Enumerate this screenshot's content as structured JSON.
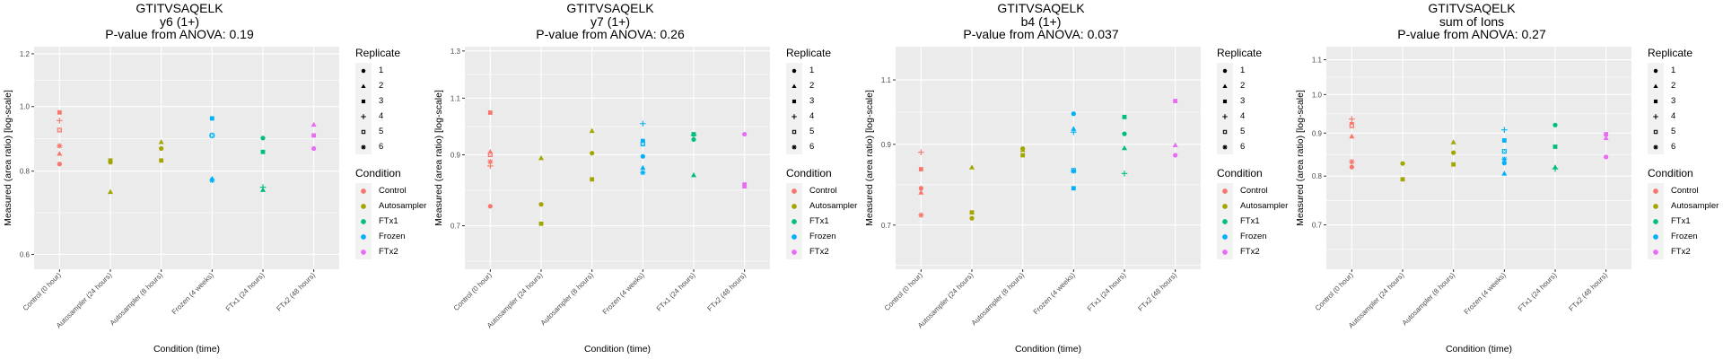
{
  "conditions": [
    "Control (0 hour)",
    "Autosampler (24 hours)",
    "Autosampler (8 hours)",
    "Frozen (4 weeks)",
    "FTx1 (24 hours)",
    "FTx2 (48 hours)"
  ],
  "condition_groups": [
    "Control",
    "Autosampler",
    "Autosampler",
    "Frozen",
    "FTx1",
    "FTx2"
  ],
  "legend": {
    "replicate_title": "Replicate",
    "replicates": [
      {
        "label": "1",
        "shape": "circle"
      },
      {
        "label": "2",
        "shape": "triangle"
      },
      {
        "label": "3",
        "shape": "square"
      },
      {
        "label": "4",
        "shape": "plus"
      },
      {
        "label": "5",
        "shape": "boxed-x"
      },
      {
        "label": "6",
        "shape": "asterisk"
      }
    ],
    "condition_title": "Condition",
    "conditions": [
      {
        "label": "Control",
        "color": "#F8766D"
      },
      {
        "label": "Autosampler",
        "color": "#A3A500"
      },
      {
        "label": "FTx1",
        "color": "#00BF7D"
      },
      {
        "label": "Frozen",
        "color": "#00B0F6"
      },
      {
        "label": "FTx2",
        "color": "#E76BF3"
      }
    ]
  },
  "chart_data": [
    {
      "type": "scatter",
      "title": "GTITVSAQELK",
      "subtitle": "y6 (1+)",
      "pvalue_text": "P-value from ANOVA: 0.19",
      "xlabel": "Condition (time)",
      "ylabel": "Measured (area ratio) [log-scale]",
      "yscale": "log",
      "ylim": [
        0.57,
        1.23
      ],
      "yticks": [
        0.6,
        0.8,
        1.0,
        1.2
      ],
      "ytick_labels": [
        "0.6",
        "0.8",
        "1.0",
        "1.2"
      ],
      "grid": true,
      "points": [
        {
          "x": 0,
          "rep": 1,
          "y": 0.82
        },
        {
          "x": 0,
          "rep": 2,
          "y": 0.85
        },
        {
          "x": 0,
          "rep": 3,
          "y": 0.98
        },
        {
          "x": 0,
          "rep": 4,
          "y": 0.953
        },
        {
          "x": 0,
          "rep": 5,
          "y": 0.922
        },
        {
          "x": 0,
          "rep": 6,
          "y": 0.873
        },
        {
          "x": 1,
          "rep": 1,
          "y": 0.825
        },
        {
          "x": 1,
          "rep": 2,
          "y": 0.745
        },
        {
          "x": 1,
          "rep": 3,
          "y": 0.83
        },
        {
          "x": 2,
          "rep": 1,
          "y": 0.865
        },
        {
          "x": 2,
          "rep": 2,
          "y": 0.885
        },
        {
          "x": 2,
          "rep": 3,
          "y": 0.83
        },
        {
          "x": 3,
          "rep": 1,
          "y": 0.905
        },
        {
          "x": 3,
          "rep": 2,
          "y": 0.78
        },
        {
          "x": 3,
          "rep": 3,
          "y": 0.96
        },
        {
          "x": 3,
          "rep": 4,
          "y": 0.905
        },
        {
          "x": 3,
          "rep": 5,
          "y": 0.905
        },
        {
          "x": 3,
          "rep": 6,
          "y": 0.775
        },
        {
          "x": 4,
          "rep": 1,
          "y": 0.897
        },
        {
          "x": 4,
          "rep": 2,
          "y": 0.75
        },
        {
          "x": 4,
          "rep": 3,
          "y": 0.855
        },
        {
          "x": 4,
          "rep": 4,
          "y": 0.757
        },
        {
          "x": 5,
          "rep": 1,
          "y": 0.865
        },
        {
          "x": 5,
          "rep": 2,
          "y": 0.94
        },
        {
          "x": 5,
          "rep": 3,
          "y": 0.905
        }
      ]
    },
    {
      "type": "scatter",
      "title": "GTITVSAQELK",
      "subtitle": "y7 (1+)",
      "pvalue_text": "P-value from ANOVA: 0.26",
      "xlabel": "Condition (time)",
      "ylabel": "Measured (area ratio) [log-scale]",
      "yscale": "log",
      "ylim": [
        0.6,
        1.32
      ],
      "yticks": [
        0.7,
        0.9,
        1.1,
        1.3
      ],
      "ytick_labels": [
        "0.7",
        "0.9",
        "1.1",
        "1.3"
      ],
      "grid": true,
      "points": [
        {
          "x": 0,
          "rep": 1,
          "y": 0.75
        },
        {
          "x": 0,
          "rep": 2,
          "y": 0.91
        },
        {
          "x": 0,
          "rep": 3,
          "y": 1.045
        },
        {
          "x": 0,
          "rep": 4,
          "y": 0.865
        },
        {
          "x": 0,
          "rep": 5,
          "y": 0.9
        },
        {
          "x": 0,
          "rep": 6,
          "y": 0.878
        },
        {
          "x": 1,
          "rep": 1,
          "y": 0.755
        },
        {
          "x": 1,
          "rep": 2,
          "y": 0.89
        },
        {
          "x": 1,
          "rep": 3,
          "y": 0.705
        },
        {
          "x": 2,
          "rep": 1,
          "y": 0.905
        },
        {
          "x": 2,
          "rep": 2,
          "y": 0.98
        },
        {
          "x": 2,
          "rep": 3,
          "y": 0.825
        },
        {
          "x": 3,
          "rep": 1,
          "y": 0.895
        },
        {
          "x": 3,
          "rep": 2,
          "y": 0.86
        },
        {
          "x": 3,
          "rep": 3,
          "y": 0.945
        },
        {
          "x": 3,
          "rep": 4,
          "y": 1.005
        },
        {
          "x": 3,
          "rep": 5,
          "y": 0.935
        },
        {
          "x": 3,
          "rep": 6,
          "y": 0.845
        },
        {
          "x": 4,
          "rep": 1,
          "y": 0.95
        },
        {
          "x": 4,
          "rep": 2,
          "y": 0.838
        },
        {
          "x": 4,
          "rep": 3,
          "y": 0.968
        },
        {
          "x": 4,
          "rep": 4,
          "y": 0.965
        },
        {
          "x": 5,
          "rep": 1,
          "y": 0.968
        },
        {
          "x": 5,
          "rep": 2,
          "y": 0.805
        },
        {
          "x": 5,
          "rep": 3,
          "y": 0.81
        }
      ]
    },
    {
      "type": "scatter",
      "title": "GTITVSAQELK",
      "subtitle": "b4 (1+)",
      "pvalue_text": "P-value from ANOVA: 0.037",
      "xlabel": "Condition (time)",
      "ylabel": "Measured (area ratio) [log-scale]",
      "yscale": "log",
      "ylim": [
        0.61,
        1.22
      ],
      "yticks": [
        0.7,
        0.9,
        1.1
      ],
      "ytick_labels": [
        "0.7",
        "0.9",
        "1.1"
      ],
      "grid": true,
      "points": [
        {
          "x": 0,
          "rep": 1,
          "y": 0.785
        },
        {
          "x": 0,
          "rep": 2,
          "y": 0.775
        },
        {
          "x": 0,
          "rep": 3,
          "y": 0.833
        },
        {
          "x": 0,
          "rep": 4,
          "y": 0.878
        },
        {
          "x": 0,
          "rep": 6,
          "y": 0.722
        },
        {
          "x": 1,
          "rep": 1,
          "y": 0.715
        },
        {
          "x": 1,
          "rep": 2,
          "y": 0.838
        },
        {
          "x": 1,
          "rep": 3,
          "y": 0.728
        },
        {
          "x": 2,
          "rep": 1,
          "y": 0.888
        },
        {
          "x": 2,
          "rep": 2,
          "y": 0.885
        },
        {
          "x": 2,
          "rep": 3,
          "y": 0.87
        },
        {
          "x": 3,
          "rep": 1,
          "y": 0.99
        },
        {
          "x": 3,
          "rep": 2,
          "y": 0.945
        },
        {
          "x": 3,
          "rep": 3,
          "y": 0.785
        },
        {
          "x": 3,
          "rep": 4,
          "y": 0.935
        },
        {
          "x": 3,
          "rep": 5,
          "y": 0.83
        },
        {
          "x": 3,
          "rep": 6,
          "y": 0.828
        },
        {
          "x": 4,
          "rep": 1,
          "y": 0.93
        },
        {
          "x": 4,
          "rep": 2,
          "y": 0.89
        },
        {
          "x": 4,
          "rep": 3,
          "y": 0.98
        },
        {
          "x": 4,
          "rep": 4,
          "y": 0.822
        },
        {
          "x": 5,
          "rep": 1,
          "y": 0.87
        },
        {
          "x": 5,
          "rep": 2,
          "y": 0.898
        },
        {
          "x": 5,
          "rep": 3,
          "y": 1.03
        }
      ]
    },
    {
      "type": "scatter",
      "title": "GTITVSAQELK",
      "subtitle": "sum of Ions",
      "pvalue_text": "P-value from ANOVA: 0.27",
      "xlabel": "Condition (time)",
      "ylabel": "Measured (area ratio) [log-scale]",
      "yscale": "log",
      "ylim": [
        0.62,
        1.14
      ],
      "yticks": [
        0.7,
        0.8,
        0.9,
        1.0,
        1.1
      ],
      "ytick_labels": [
        "0.7",
        "0.8",
        "0.9",
        "1.0",
        "1.1"
      ],
      "grid": true,
      "points": [
        {
          "x": 0,
          "rep": 1,
          "y": 0.82
        },
        {
          "x": 0,
          "rep": 2,
          "y": 0.892
        },
        {
          "x": 0,
          "rep": 3,
          "y": 0.922
        },
        {
          "x": 0,
          "rep": 4,
          "y": 0.935
        },
        {
          "x": 0,
          "rep": 5,
          "y": 0.918
        },
        {
          "x": 0,
          "rep": 6,
          "y": 0.832
        },
        {
          "x": 1,
          "rep": 1,
          "y": 0.828
        },
        {
          "x": 1,
          "rep": 3,
          "y": 0.793
        },
        {
          "x": 2,
          "rep": 1,
          "y": 0.853
        },
        {
          "x": 2,
          "rep": 2,
          "y": 0.878
        },
        {
          "x": 2,
          "rep": 3,
          "y": 0.826
        },
        {
          "x": 3,
          "rep": 1,
          "y": 0.829
        },
        {
          "x": 3,
          "rep": 2,
          "y": 0.806
        },
        {
          "x": 3,
          "rep": 3,
          "y": 0.882
        },
        {
          "x": 3,
          "rep": 4,
          "y": 0.908
        },
        {
          "x": 3,
          "rep": 5,
          "y": 0.856
        },
        {
          "x": 3,
          "rep": 6,
          "y": 0.838
        },
        {
          "x": 4,
          "rep": 1,
          "y": 0.92
        },
        {
          "x": 4,
          "rep": 2,
          "y": 0.82
        },
        {
          "x": 4,
          "rep": 3,
          "y": 0.867
        },
        {
          "x": 4,
          "rep": 4,
          "y": 0.816
        },
        {
          "x": 5,
          "rep": 1,
          "y": 0.843
        },
        {
          "x": 5,
          "rep": 2,
          "y": 0.888
        },
        {
          "x": 5,
          "rep": 3,
          "y": 0.897
        }
      ]
    }
  ]
}
